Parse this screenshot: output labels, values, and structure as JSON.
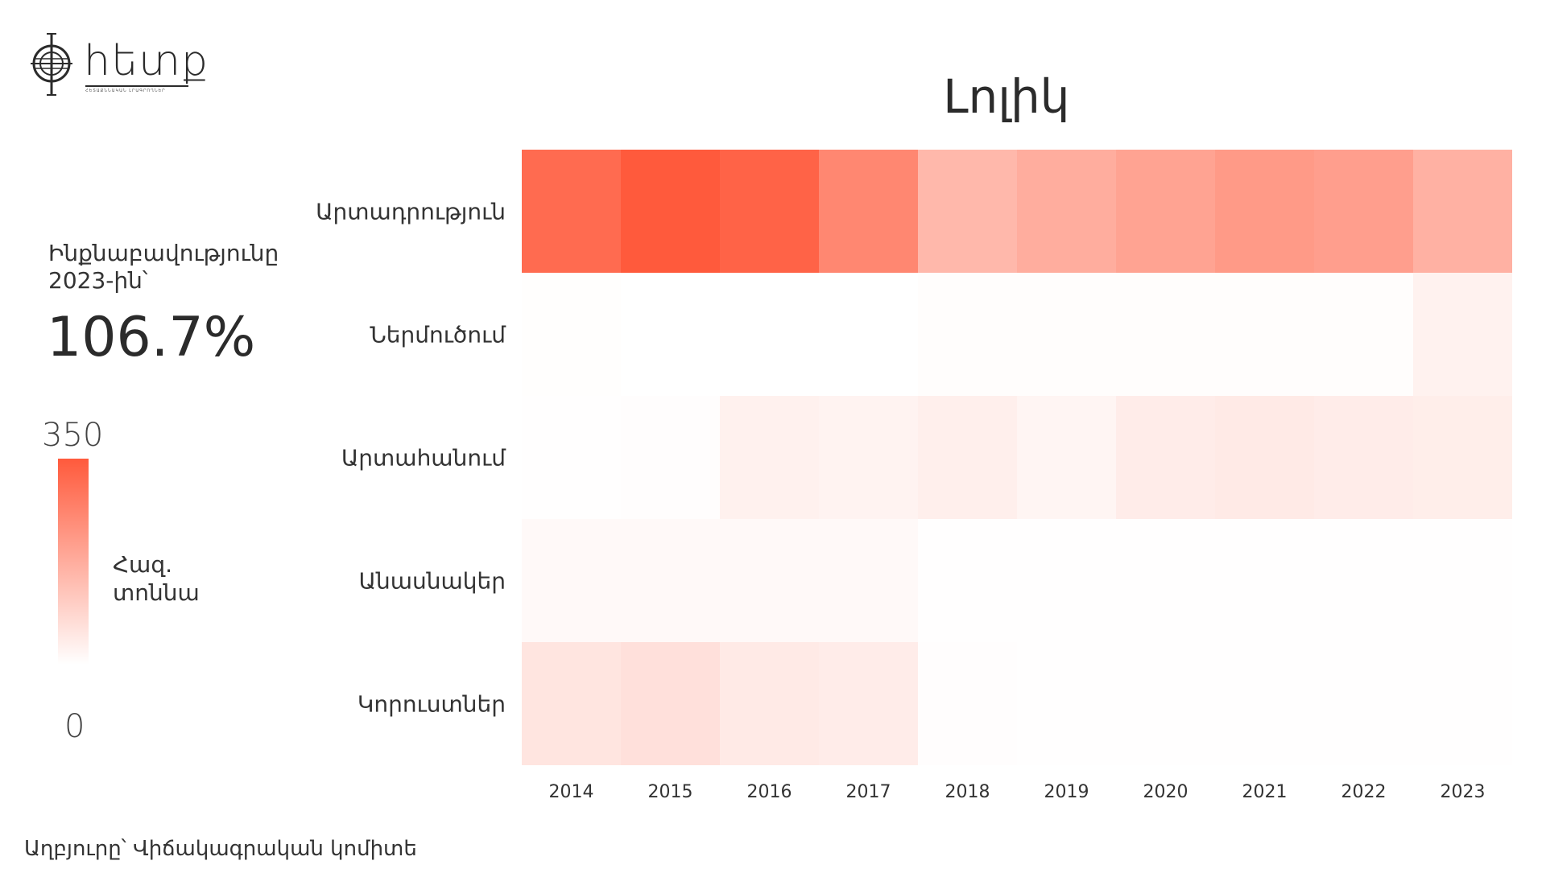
{
  "brand": {
    "name": "հետք",
    "tagline": "ՀԵՏԱՔՆՆԱԿԱՆ ԼՐԱԳՐՈՂՆԵՐ"
  },
  "kpi": {
    "label": "Ինքնաբավությունը 2023-ին՝",
    "value": "106.7%"
  },
  "legend": {
    "max_label": "350",
    "min_label": "0",
    "unit": "Հազ. տոննա"
  },
  "source": "Աղբյուրը՝ Վիճակագրական կոմիտե",
  "colors": {
    "high": "#ff5a3c",
    "low": "#ffffff",
    "text": "#333333"
  },
  "chart_data": {
    "type": "heatmap",
    "title": "Լոլիկ",
    "x": [
      "2014",
      "2015",
      "2016",
      "2017",
      "2018",
      "2019",
      "2020",
      "2021",
      "2022",
      "2023"
    ],
    "y": [
      "Արտադրություն",
      "Ներմուծում",
      "Արտահանում",
      "Անասնակեր",
      "Կորուստներ"
    ],
    "values": [
      [
        315,
        350,
        330,
        255,
        150,
        175,
        195,
        215,
        205,
        165
      ],
      [
        3,
        0,
        0,
        0,
        5,
        5,
        5,
        5,
        5,
        28
      ],
      [
        2,
        4,
        30,
        25,
        35,
        22,
        40,
        45,
        40,
        37
      ],
      [
        12,
        12,
        12,
        12,
        2,
        2,
        2,
        2,
        2,
        2
      ],
      [
        55,
        65,
        45,
        40,
        4,
        2,
        2,
        2,
        2,
        2
      ]
    ],
    "value_range": [
      0,
      350
    ],
    "grid": false
  }
}
